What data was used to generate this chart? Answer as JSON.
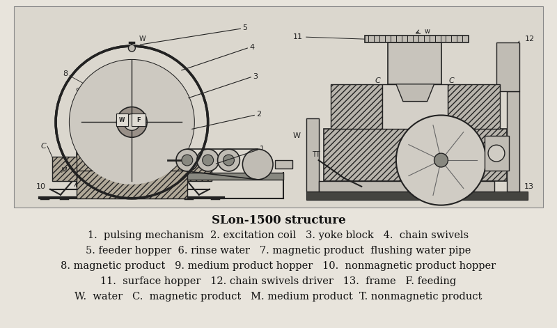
{
  "title": "SLon-1500 structure",
  "title_fontsize": 12,
  "figure_bg": "#e8e4dc",
  "diagram_bg": "#dedad2",
  "legend_lines": [
    "1.  pulsing mechanism  2. excitation coil   3. yoke block   4.  chain swivels",
    "5. feeder hopper  6. rinse water   7. magnetic product  flushing water pipe",
    "8. magnetic product   9. medium product hopper   10.  nonmagnetic product hopper",
    "11.  surface hopper   12. chain swivels driver   13.  frame   F. feeding",
    "W.  water   C.  magnetic product   M. medium product  T. nonmagnetic product"
  ],
  "legend_fontsize": 10.5,
  "dark": "#222222",
  "mid": "#666666",
  "light": "#aaaaaa",
  "hatch_color": "#444444"
}
